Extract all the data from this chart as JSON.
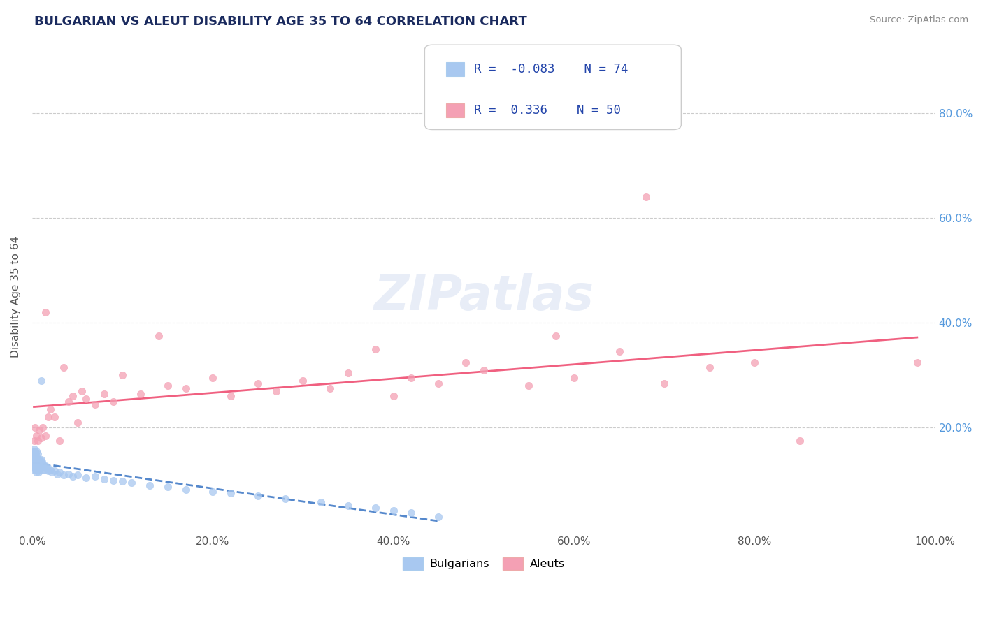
{
  "title": "BULGARIAN VS ALEUT DISABILITY AGE 35 TO 64 CORRELATION CHART",
  "source": "Source: ZipAtlas.com",
  "ylabel": "Disability Age 35 to 64",
  "xlim": [
    0.0,
    1.0
  ],
  "ylim": [
    0.0,
    0.9
  ],
  "x_tick_labels": [
    "0.0%",
    "20.0%",
    "40.0%",
    "60.0%",
    "80.0%",
    "100.0%"
  ],
  "x_tick_values": [
    0.0,
    0.2,
    0.4,
    0.6,
    0.8,
    1.0
  ],
  "y_tick_labels": [
    "20.0%",
    "40.0%",
    "60.0%",
    "80.0%"
  ],
  "y_tick_values": [
    0.2,
    0.4,
    0.6,
    0.8
  ],
  "bulgarian_R": -0.083,
  "bulgarian_N": 74,
  "aleut_R": 0.336,
  "aleut_N": 50,
  "bulgarian_color": "#a8c8f0",
  "aleut_color": "#f4a0b4",
  "bulgarian_line_color": "#5588cc",
  "aleut_line_color": "#f06080",
  "bulgarians_x": [
    0.001,
    0.001,
    0.001,
    0.002,
    0.002,
    0.002,
    0.002,
    0.002,
    0.003,
    0.003,
    0.003,
    0.003,
    0.004,
    0.004,
    0.004,
    0.004,
    0.005,
    0.005,
    0.005,
    0.005,
    0.005,
    0.006,
    0.006,
    0.006,
    0.006,
    0.007,
    0.007,
    0.007,
    0.008,
    0.008,
    0.008,
    0.009,
    0.009,
    0.01,
    0.01,
    0.011,
    0.011,
    0.012,
    0.012,
    0.013,
    0.014,
    0.015,
    0.016,
    0.017,
    0.018,
    0.02,
    0.022,
    0.025,
    0.028,
    0.03,
    0.035,
    0.04,
    0.045,
    0.05,
    0.06,
    0.07,
    0.08,
    0.09,
    0.1,
    0.11,
    0.13,
    0.15,
    0.17,
    0.2,
    0.22,
    0.25,
    0.28,
    0.32,
    0.35,
    0.38,
    0.4,
    0.42,
    0.45,
    0.01
  ],
  "bulgarians_y": [
    0.155,
    0.125,
    0.145,
    0.16,
    0.13,
    0.14,
    0.15,
    0.12,
    0.155,
    0.135,
    0.145,
    0.125,
    0.15,
    0.14,
    0.13,
    0.12,
    0.145,
    0.135,
    0.125,
    0.115,
    0.155,
    0.14,
    0.13,
    0.12,
    0.15,
    0.135,
    0.125,
    0.115,
    0.14,
    0.13,
    0.12,
    0.135,
    0.125,
    0.14,
    0.13,
    0.135,
    0.125,
    0.13,
    0.12,
    0.125,
    0.12,
    0.128,
    0.122,
    0.125,
    0.118,
    0.12,
    0.115,
    0.118,
    0.112,
    0.115,
    0.11,
    0.112,
    0.108,
    0.11,
    0.105,
    0.108,
    0.102,
    0.1,
    0.098,
    0.095,
    0.09,
    0.088,
    0.082,
    0.078,
    0.075,
    0.07,
    0.065,
    0.058,
    0.052,
    0.048,
    0.042,
    0.038,
    0.03,
    0.29
  ],
  "aleuts_x": [
    0.002,
    0.003,
    0.005,
    0.006,
    0.008,
    0.01,
    0.012,
    0.015,
    0.015,
    0.018,
    0.02,
    0.025,
    0.03,
    0.035,
    0.04,
    0.045,
    0.05,
    0.055,
    0.06,
    0.07,
    0.08,
    0.09,
    0.1,
    0.12,
    0.14,
    0.15,
    0.17,
    0.2,
    0.22,
    0.25,
    0.27,
    0.3,
    0.33,
    0.35,
    0.38,
    0.4,
    0.42,
    0.45,
    0.48,
    0.5,
    0.55,
    0.58,
    0.6,
    0.65,
    0.68,
    0.7,
    0.75,
    0.8,
    0.85,
    0.98
  ],
  "aleuts_y": [
    0.175,
    0.2,
    0.185,
    0.175,
    0.195,
    0.18,
    0.2,
    0.42,
    0.185,
    0.22,
    0.235,
    0.22,
    0.175,
    0.315,
    0.25,
    0.26,
    0.21,
    0.27,
    0.255,
    0.245,
    0.265,
    0.25,
    0.3,
    0.265,
    0.375,
    0.28,
    0.275,
    0.295,
    0.26,
    0.285,
    0.27,
    0.29,
    0.275,
    0.305,
    0.35,
    0.26,
    0.295,
    0.285,
    0.325,
    0.31,
    0.28,
    0.375,
    0.295,
    0.345,
    0.64,
    0.285,
    0.315,
    0.325,
    0.175,
    0.325
  ]
}
